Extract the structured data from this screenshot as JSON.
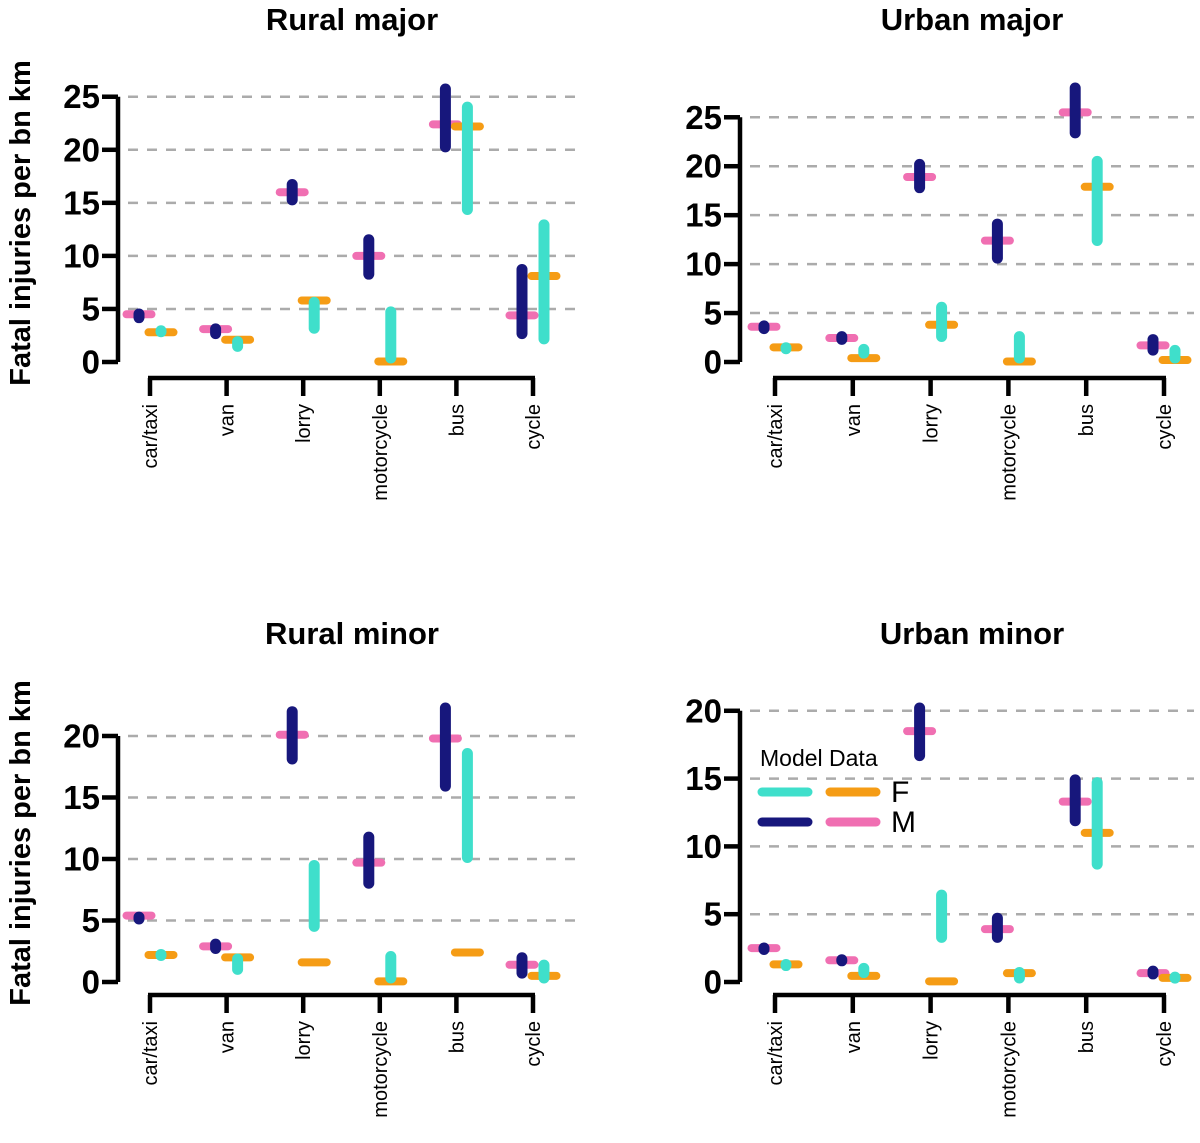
{
  "figure": {
    "ylabel": "Fatal injuries per bn km",
    "background": "#ffffff"
  },
  "colors": {
    "model_F": "#3FDFCB",
    "data_F": "#F59C15",
    "model_M": "#17177C",
    "data_M": "#F06FB2",
    "gridline": "#ABABAB",
    "axis": "#000000"
  },
  "legend": {
    "title": "Model Data",
    "entries": [
      {
        "label": "F",
        "model_color": "#3FDFCB",
        "data_color": "#F59C15"
      },
      {
        "label": "M",
        "model_color": "#17177C",
        "data_color": "#F06FB2"
      }
    ]
  },
  "chart_data": [
    {
      "type": "interval-range-with-points",
      "title": "Rural major",
      "ylabel": "Fatal injuries per bn km",
      "categories": [
        "car/taxi",
        "van",
        "lorry",
        "motorcycle",
        "bus",
        "cycle"
      ],
      "yticks": [
        0,
        5,
        10,
        15,
        20,
        25
      ],
      "ylim": [
        0,
        26.2
      ],
      "grid": "dashed-horizontal",
      "series": [
        {
          "name": "Model M",
          "role": "model",
          "group": "M",
          "color": "#17177C",
          "low": [
            3.8,
            2.3,
            14.9,
            7.9,
            19.9,
            2.3
          ],
          "high": [
            4.9,
            3.5,
            17.1,
            11.9,
            26.1,
            9.1
          ]
        },
        {
          "name": "Model F",
          "role": "model",
          "group": "F",
          "color": "#3FDFCB",
          "low": [
            2.5,
            1.1,
            2.8,
            0.0,
            14.0,
            1.8
          ],
          "high": [
            3.3,
            2.3,
            6.0,
            5.1,
            24.4,
            13.3
          ]
        },
        {
          "name": "Data M",
          "role": "data",
          "group": "M",
          "color": "#F06FB2",
          "values": [
            4.5,
            3.1,
            16.0,
            10.0,
            22.4,
            4.4
          ]
        },
        {
          "name": "Data F",
          "role": "data",
          "group": "F",
          "color": "#F59C15",
          "values": [
            2.8,
            2.1,
            5.8,
            0.05,
            22.2,
            8.1
          ]
        }
      ]
    },
    {
      "type": "interval-range-with-points",
      "title": "Urban major",
      "ylabel": "",
      "categories": [
        "car/taxi",
        "van",
        "lorry",
        "motorcycle",
        "bus",
        "cycle"
      ],
      "yticks": [
        0,
        5,
        10,
        15,
        20,
        25
      ],
      "ylim": [
        0,
        28.4
      ],
      "grid": "dashed-horizontal",
      "series": [
        {
          "name": "Model M",
          "role": "model",
          "group": "M",
          "color": "#17177C",
          "low": [
            3.0,
            1.9,
            17.4,
            10.2,
            23.0,
            0.8
          ],
          "high": [
            4.1,
            3.0,
            20.6,
            14.5,
            28.4,
            2.7
          ]
        },
        {
          "name": "Model F",
          "role": "model",
          "group": "F",
          "color": "#3FDFCB",
          "low": [
            1.1,
            0.5,
            2.2,
            0.0,
            12.0,
            0.0
          ],
          "high": [
            1.7,
            1.7,
            6.0,
            3.0,
            20.9,
            1.6
          ]
        },
        {
          "name": "Data M",
          "role": "data",
          "group": "M",
          "color": "#F06FB2",
          "values": [
            3.6,
            2.45,
            18.9,
            12.4,
            25.5,
            1.7
          ]
        },
        {
          "name": "Data F",
          "role": "data",
          "group": "F",
          "color": "#F59C15",
          "values": [
            1.5,
            0.4,
            3.8,
            0.05,
            17.9,
            0.2
          ]
        }
      ]
    },
    {
      "type": "interval-range-with-points",
      "title": "Rural minor",
      "ylabel": "Fatal injuries per bn km",
      "categories": [
        "car/taxi",
        "van",
        "lorry",
        "motorcycle",
        "bus",
        "cycle"
      ],
      "yticks": [
        0,
        5,
        10,
        15,
        20
      ],
      "ylim": [
        0,
        22.6
      ],
      "grid": "dashed-horizontal",
      "series": [
        {
          "name": "Model M",
          "role": "model",
          "group": "M",
          "color": "#17177C",
          "low": [
            4.8,
            2.4,
            17.8,
            7.7,
            15.6,
            0.4
          ],
          "high": [
            5.6,
            3.4,
            22.3,
            12.1,
            22.6,
            2.3
          ]
        },
        {
          "name": "Model F",
          "role": "model",
          "group": "F",
          "color": "#3FDFCB",
          "low": [
            2.0,
            0.7,
            4.2,
            0.0,
            9.8,
            0.0
          ],
          "high": [
            2.4,
            2.2,
            9.8,
            2.4,
            18.9,
            1.7
          ]
        },
        {
          "name": "Data M",
          "role": "data",
          "group": "M",
          "color": "#F06FB2",
          "values": [
            5.4,
            2.9,
            20.1,
            9.7,
            19.8,
            1.4
          ]
        },
        {
          "name": "Data F",
          "role": "data",
          "group": "F",
          "color": "#F59C15",
          "values": [
            2.2,
            2.0,
            1.6,
            0.05,
            2.4,
            0.5
          ]
        }
      ]
    },
    {
      "type": "interval-range-with-points",
      "title": "Urban minor",
      "ylabel": "",
      "categories": [
        "car/taxi",
        "van",
        "lorry",
        "motorcycle",
        "bus",
        "cycle"
      ],
      "yticks": [
        0,
        5,
        10,
        15,
        20
      ],
      "ylim": [
        0,
        20.5
      ],
      "grid": "dashed-horizontal",
      "has_legend": true,
      "series": [
        {
          "name": "Model M",
          "role": "model",
          "group": "M",
          "color": "#17177C",
          "low": [
            2.1,
            1.3,
            16.4,
            3.0,
            11.6,
            0.3
          ],
          "high": [
            2.8,
            1.9,
            20.5,
            5.0,
            15.2,
            1.1
          ]
        },
        {
          "name": "Model F",
          "role": "model",
          "group": "F",
          "color": "#3FDFCB",
          "low": [
            1.0,
            0.4,
            3.0,
            0.0,
            8.4,
            0.0
          ],
          "high": [
            1.5,
            1.3,
            6.7,
            1.0,
            15.0,
            0.65
          ]
        },
        {
          "name": "Data M",
          "role": "data",
          "group": "M",
          "color": "#F06FB2",
          "values": [
            2.5,
            1.6,
            18.5,
            3.9,
            13.3,
            0.65
          ]
        },
        {
          "name": "Data F",
          "role": "data",
          "group": "F",
          "color": "#F59C15",
          "values": [
            1.3,
            0.45,
            0.05,
            0.65,
            11.0,
            0.3
          ]
        }
      ]
    }
  ]
}
